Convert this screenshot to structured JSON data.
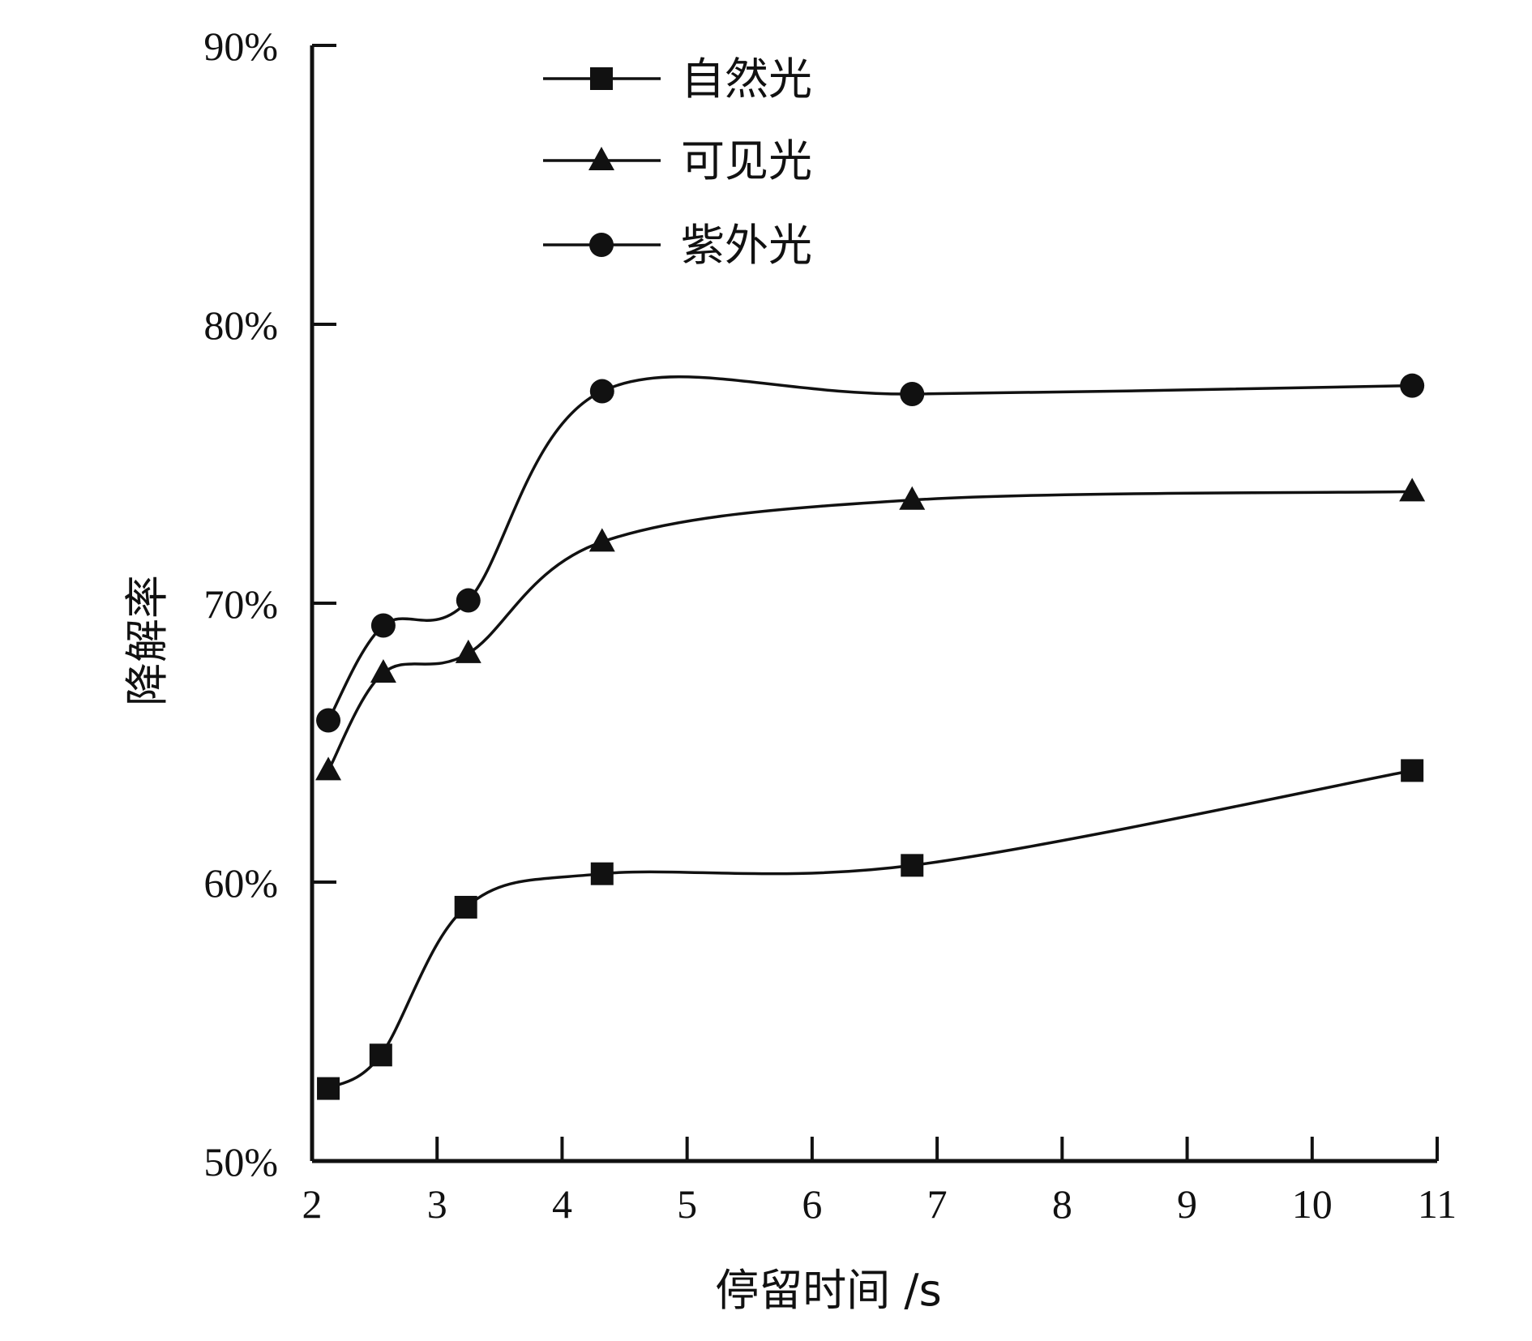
{
  "chart_data": {
    "type": "line",
    "title": "",
    "xlabel": "停留时间 /s",
    "ylabel": "降解率",
    "xlim": [
      2,
      11
    ],
    "ylim": [
      50,
      90
    ],
    "x_ticks": [
      "2",
      "3",
      "4",
      "5",
      "6",
      "7",
      "8",
      "9",
      "10",
      "11"
    ],
    "y_ticks": [
      "50%",
      "60%",
      "70%",
      "80%",
      "90%"
    ],
    "x_tick_values": [
      2,
      3,
      4,
      5,
      6,
      7,
      8,
      9,
      10,
      11
    ],
    "y_tick_values": [
      50,
      60,
      70,
      80,
      90
    ],
    "smooth": true,
    "grid": false,
    "legend_position": "top-center",
    "series": [
      {
        "name": "自然光",
        "marker": "square",
        "x": [
          2.13,
          2.55,
          3.23,
          4.32,
          6.8,
          10.8
        ],
        "y": [
          52.6,
          53.8,
          59.1,
          60.3,
          60.6,
          64.0
        ]
      },
      {
        "name": "可见光",
        "marker": "triangle",
        "x": [
          2.13,
          2.57,
          3.25,
          4.32,
          6.8,
          10.8
        ],
        "y": [
          64.0,
          67.5,
          68.2,
          72.2,
          73.7,
          74.0
        ]
      },
      {
        "name": "紫外光",
        "marker": "circle",
        "x": [
          2.13,
          2.57,
          3.25,
          4.32,
          6.8,
          10.8
        ],
        "y": [
          65.8,
          69.2,
          70.1,
          77.6,
          77.5,
          77.8
        ]
      }
    ]
  }
}
